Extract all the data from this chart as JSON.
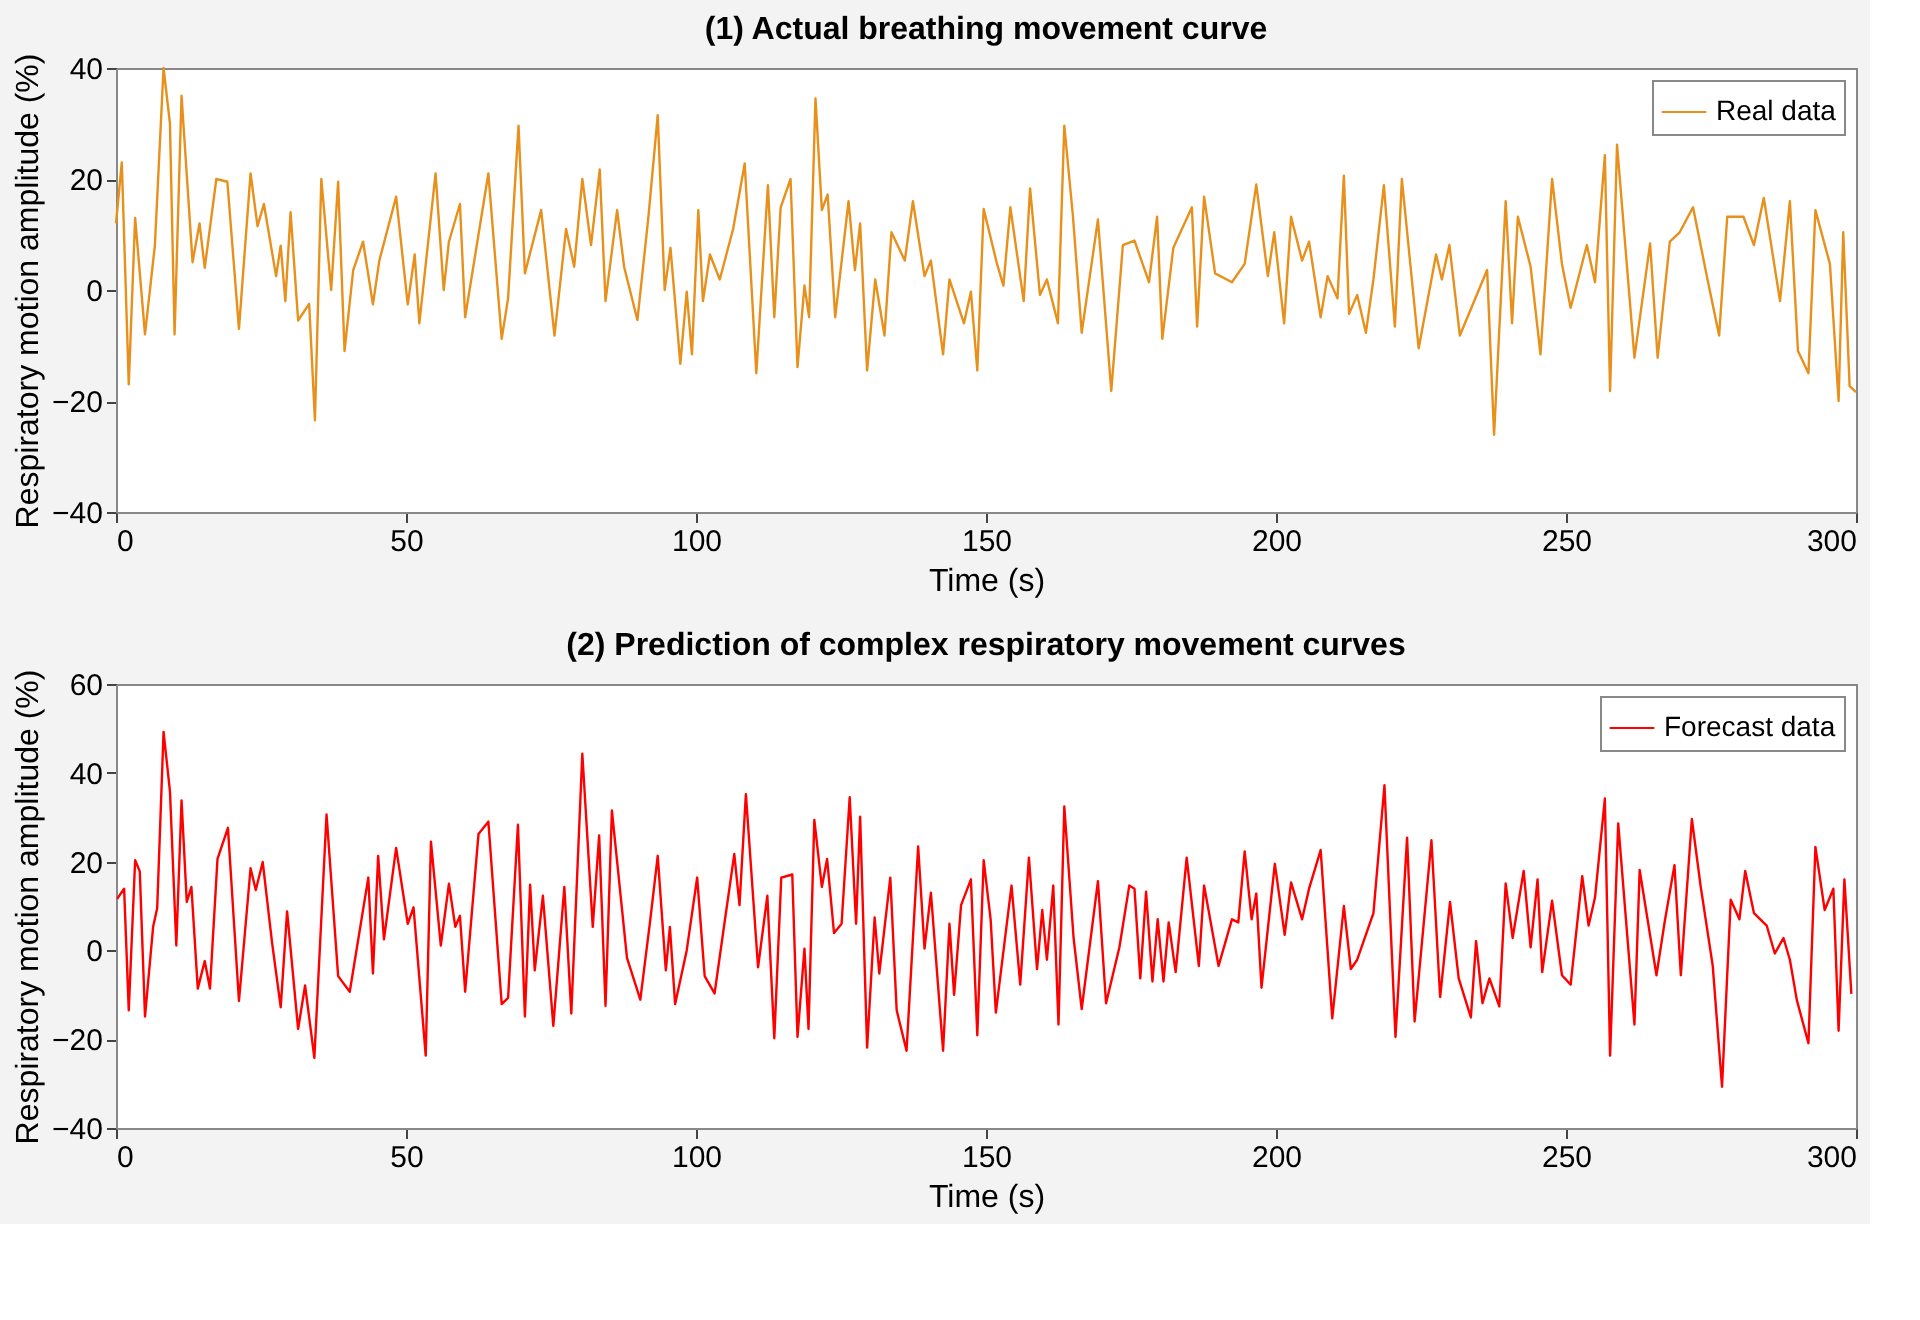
{
  "chart_data": [
    {
      "type": "line",
      "title": "(1) Actual breathing movement curve",
      "xlabel": "Time (s)",
      "ylabel": "Respiratory motion amplitude (%)",
      "xlim": [
        0,
        300
      ],
      "xticks": [
        0,
        50,
        100,
        150,
        200,
        250,
        300
      ],
      "ylim": [
        -40,
        40
      ],
      "yticks": [
        -40,
        -20,
        0,
        20,
        40
      ],
      "grid": false,
      "legend": "top right",
      "series": [
        {
          "name": "Real data",
          "color": "#e8901c",
          "x": [
            0,
            1,
            2.2,
            3.3,
            5,
            6.7,
            8.2,
            9.3,
            10.1,
            11.3,
            13.2,
            14.4,
            15.3,
            17.3,
            19.2,
            21.2,
            23.2,
            24.4,
            25.5,
            27.6,
            28.4,
            29.2,
            30.1,
            31.4,
            33.3,
            34.3,
            35.4,
            37.1,
            38.3,
            39.4,
            40.9,
            42.6,
            44.3,
            45.4,
            48.3,
            50.3,
            51.5,
            52.3,
            55.1,
            56.5,
            57.4,
            59.3,
            60.2,
            64.2,
            66.5,
            67.6,
            69.4,
            70.5,
            73.3,
            75.6,
            77.6,
            79,
            80.4,
            81.9,
            83.4,
            84.4,
            86.4,
            87.6,
            89.9,
            91.8,
            93.4,
            94.6,
            95.6,
            97.3,
            98.4,
            99.3,
            100.4,
            101.2,
            102.4,
            104.1,
            106.4,
            108.4,
            110.4,
            112.4,
            113.5,
            114.6,
            116.3,
            117.5,
            118.7,
            119.5,
            120.6,
            121.7,
            122.7,
            124,
            126.3,
            127.4,
            128.3,
            129.5,
            130.9,
            132.5,
            133.7,
            136,
            137.4,
            139.4,
            140.5,
            142.6,
            143.7,
            146.2,
            147.4,
            148.5,
            149.6,
            151.9,
            153,
            154.2,
            156.5,
            157.6,
            159.3,
            160.5,
            162.4,
            163.5,
            165,
            166.5,
            169.3,
            171.6,
            173.6,
            175.6,
            178.1,
            179.5,
            180.4,
            182.3,
            185.5,
            186.4,
            187.6,
            189.5,
            192.4,
            194.6,
            196.6,
            198.6,
            199.7,
            201.4,
            202.6,
            204.5,
            205.7,
            207.7,
            208.9,
            210.6,
            211.7,
            212.6,
            214,
            215.5,
            216.8,
            218.6,
            220.5,
            221.7,
            224.6,
            227.6,
            228.6,
            229.9,
            231.7,
            236.4,
            237.6,
            239.6,
            240.7,
            241.7,
            243.9,
            245.6,
            247.6,
            249.3,
            250.8,
            253.6,
            255,
            256.7,
            257.6,
            258.8,
            261.8,
            264.5,
            265.8,
            267.9,
            269.6,
            271.9,
            274.4,
            276.4,
            277.8,
            280.6,
            282.4,
            284.1,
            286.9,
            288.6,
            290,
            291.8,
            293,
            295.5,
            297,
            297.8,
            298.9,
            300
          ],
          "values": [
            12,
            23,
            -17,
            13,
            -8,
            8,
            40,
            30,
            -8,
            35,
            5,
            12,
            4,
            20,
            19.5,
            -7,
            21,
            11.5,
            15.5,
            2.5,
            8,
            -2,
            14,
            -5.5,
            -2.5,
            -23.5,
            20,
            0,
            19.5,
            -11,
            3.6,
            8.7,
            -2.6,
            5.3,
            16.8,
            -2.6,
            6.4,
            -6,
            21,
            0,
            8.7,
            15.5,
            -4.9,
            21,
            -8.8,
            -1.5,
            29.6,
            3,
            14.4,
            -8.2,
            11,
            4.2,
            20,
            8.1,
            21.7,
            -2,
            14.4,
            4.2,
            -5.4,
            13.2,
            31.5,
            0,
            7.6,
            -13.3,
            -0.3,
            -11.6,
            14.4,
            -2,
            6.4,
            1.9,
            11,
            22.8,
            -15,
            18.9,
            -4.9,
            14.9,
            20,
            -13.9,
            0.8,
            -4.9,
            34.5,
            14.4,
            17.2,
            -4.9,
            16,
            3.6,
            12,
            -14.5,
            1.9,
            -8.2,
            10.4,
            5.3,
            16,
            2.5,
            5.3,
            -11.6,
            1.9,
            -6,
            -0.3,
            -14.5,
            14.6,
            4.7,
            0.8,
            14.9,
            -2,
            18.3,
            -0.9,
            1.9,
            -6,
            29.6,
            13.2,
            -7.7,
            12.7,
            -18.2,
            8.1,
            8.9,
            1.4,
            13.2,
            -8.8,
            7.6,
            14.9,
            -6.6,
            16.8,
            3,
            1.4,
            4.7,
            19,
            2.5,
            10.4,
            -6,
            13.2,
            5.3,
            8.7,
            -4.9,
            2.5,
            -1.5,
            20.6,
            -4.3,
            -0.9,
            -7.7,
            1.9,
            18.9,
            -6.6,
            20,
            -10.5,
            6.4,
            1.9,
            8.1,
            -8.2,
            3.6,
            -26.1,
            16,
            -6,
            13.2,
            4.2,
            -11.6,
            20,
            4.7,
            -3.2,
            8.1,
            1.4,
            24.3,
            -18.2,
            26.2,
            -12.2,
            8.4,
            -12.2,
            8.7,
            10.4,
            14.9,
            1.9,
            -8.2,
            13.2,
            13.2,
            8.1,
            16.6,
            -2,
            16,
            -11,
            -15,
            14.4,
            4.7,
            -20,
            10.4,
            -17.3,
            -18.4
          ]
        }
      ]
    },
    {
      "type": "line",
      "title": "(2) Prediction of complex respiratory movement curves",
      "xlabel": "Time (s)",
      "ylabel": "Respiratory motion amplitude (%)",
      "xlim": [
        0,
        300
      ],
      "xticks": [
        0,
        50,
        100,
        150,
        200,
        250,
        300
      ],
      "ylim": [
        -40,
        60
      ],
      "yticks": [
        -40,
        -20,
        0,
        20,
        40,
        60
      ],
      "grid": false,
      "legend": "top right",
      "series": [
        {
          "name": "Forecast data",
          "color": "#ff0000",
          "x": [
            0.2,
            1.4,
            2.2,
            3.3,
            4.1,
            5,
            6.4,
            7.1,
            8.2,
            9.3,
            10.4,
            11.3,
            12.2,
            13,
            14.1,
            15.3,
            16.2,
            17.5,
            19.3,
            21.2,
            23.2,
            24.1,
            25.3,
            26.9,
            28.4,
            29.5,
            31.4,
            32.6,
            34.2,
            36.3,
            38.3,
            40.3,
            43.5,
            44.3,
            45.2,
            46.2,
            48.3,
            50.3,
            51.3,
            53.4,
            54.3,
            56,
            57.4,
            58.5,
            59.3,
            60.2,
            62.5,
            64.2,
            66.5,
            67.6,
            69.3,
            70.5,
            71.4,
            72.2,
            73.6,
            75.4,
            77.3,
            78.5,
            80.4,
            82.2,
            83.3,
            84.4,
            85.5,
            88.1,
            90.4,
            92.1,
            93.4,
            94.8,
            95.5,
            96.4,
            98.4,
            100.2,
            101.5,
            103.2,
            104.7,
            106.6,
            107.5,
            108.6,
            110.7,
            112.3,
            113.5,
            114.7,
            116.6,
            117.5,
            118.7,
            119.4,
            120.4,
            121.7,
            122.6,
            123.8,
            125.1,
            126.5,
            127.6,
            128.3,
            129.5,
            130.8,
            131.6,
            133.5,
            134.6,
            136.3,
            138.3,
            139.4,
            140.5,
            142.6,
            143.7,
            144.5,
            145.7,
            147.4,
            148.5,
            149.6,
            150.8,
            151.7,
            154.4,
            155.9,
            157.4,
            158.8,
            159.7,
            160.5,
            161.6,
            162.5,
            163.5,
            165.1,
            166.5,
            169.3,
            170.7,
            173,
            174.7,
            175.6,
            176.6,
            177.6,
            178.7,
            179.6,
            180.6,
            181.5,
            182.7,
            184.6,
            186.7,
            187.6,
            190.1,
            192.4,
            193.5,
            194.6,
            195.8,
            196.6,
            197.5,
            199.8,
            201.5,
            202.6,
            204.5,
            205.7,
            207.7,
            209.7,
            211.7,
            212.9,
            214,
            216.8,
            218.7,
            220.6,
            222.6,
            223.9,
            226.8,
            228.3,
            230,
            231.5,
            233.6,
            234.5,
            235.6,
            236.8,
            238.5,
            239.6,
            240.8,
            242.7,
            243.9,
            245.1,
            245.9,
            247.6,
            249.3,
            250.8,
            252.8,
            253.9,
            255,
            256.7,
            257.6,
            259,
            261.8,
            262.7,
            265.6,
            267,
            268.7,
            269.8,
            271.7,
            273.2,
            275.3,
            276.9,
            278.4,
            279.9,
            280.9,
            282.4,
            284.6,
            286,
            287.5,
            288.6,
            289.8,
            291.8,
            293,
            294.6,
            296.1,
            297,
            298,
            299.2
          ],
          "values": [
            11.6,
            13.9,
            -13.5,
            20.3,
            17.8,
            -14.9,
            5.3,
            9.5,
            49.2,
            35.9,
            1.1,
            33.8,
            10.9,
            14.3,
            -8.6,
            -2.4,
            -8.6,
            20.6,
            27.6,
            -11.4,
            18.5,
            13.6,
            19.9,
            1.8,
            -12.8,
            8.8,
            -17.7,
            -7.9,
            -24.2,
            30.6,
            -5.8,
            -9.3,
            16.4,
            -5.2,
            21.3,
            2.5,
            23.1,
            6,
            9.7,
            -23.7,
            24.5,
            1.1,
            15,
            5.3,
            7.8,
            -9.3,
            26.2,
            29,
            -12.1,
            -10.7,
            28.3,
            -14.9,
            14.8,
            -4.5,
            12.3,
            -17,
            14.3,
            -14.2,
            44.3,
            5.3,
            25.9,
            -12.5,
            31.5,
            -1.7,
            -11.1,
            6.7,
            21.3,
            -4.5,
            5.3,
            -12.1,
            0,
            16.4,
            -5.8,
            -9.7,
            4.2,
            21.7,
            10.2,
            35.2,
            -3.8,
            12.3,
            -19.8,
            16.4,
            17.1,
            -19.5,
            0.4,
            -17.7,
            29.4,
            14.3,
            20.6,
            3.9,
            6,
            34.5,
            6,
            30.1,
            -21.9,
            7.4,
            -5.2,
            16.4,
            -13.5,
            -22.6,
            23.4,
            0.4,
            13,
            -22.6,
            6,
            -10,
            10.2,
            16,
            -19.1,
            20.3,
            7,
            -14,
            14.6,
            -7.7,
            20.9,
            -4.2,
            9.1,
            -2.1,
            14.6,
            -16.7,
            32.4,
            2.8,
            -13.2,
            15.6,
            -11.9,
            0.7,
            14.6,
            13.9,
            -6.3,
            13.2,
            -7,
            7,
            -7,
            6.3,
            -4.9,
            20.9,
            -3.5,
            14.6,
            -3.5,
            7,
            6.3,
            22.3,
            7,
            12.8,
            -8.4,
            19.5,
            3.5,
            15.3,
            7,
            13.9,
            22.6,
            -15.3,
            10,
            -4.2,
            -2.1,
            8.4,
            37.2,
            -19.5,
            25.4,
            -16,
            24.8,
            -10.5,
            10.9,
            -6.3,
            -15.1,
            2.1,
            -11.9,
            -6.3,
            -12.6,
            15.1,
            2.8,
            17.9,
            0.7,
            16,
            -4.9,
            11.2,
            -5.6,
            -7.7,
            16.7,
            5.6,
            11.9,
            34.2,
            -23.7,
            28.6,
            -16.7,
            18.1,
            -5.6,
            6.3,
            19.2,
            -5.6,
            29.6,
            14.6,
            -3.5,
            -30.7,
            11.4,
            7,
            17.9,
            8.4,
            5.6,
            -0.7,
            2.8,
            -2.1,
            -11.2,
            -20.9,
            23.3,
            9.1,
            13.9,
            -18.1,
            16,
            -9.8
          ]
        }
      ]
    }
  ]
}
